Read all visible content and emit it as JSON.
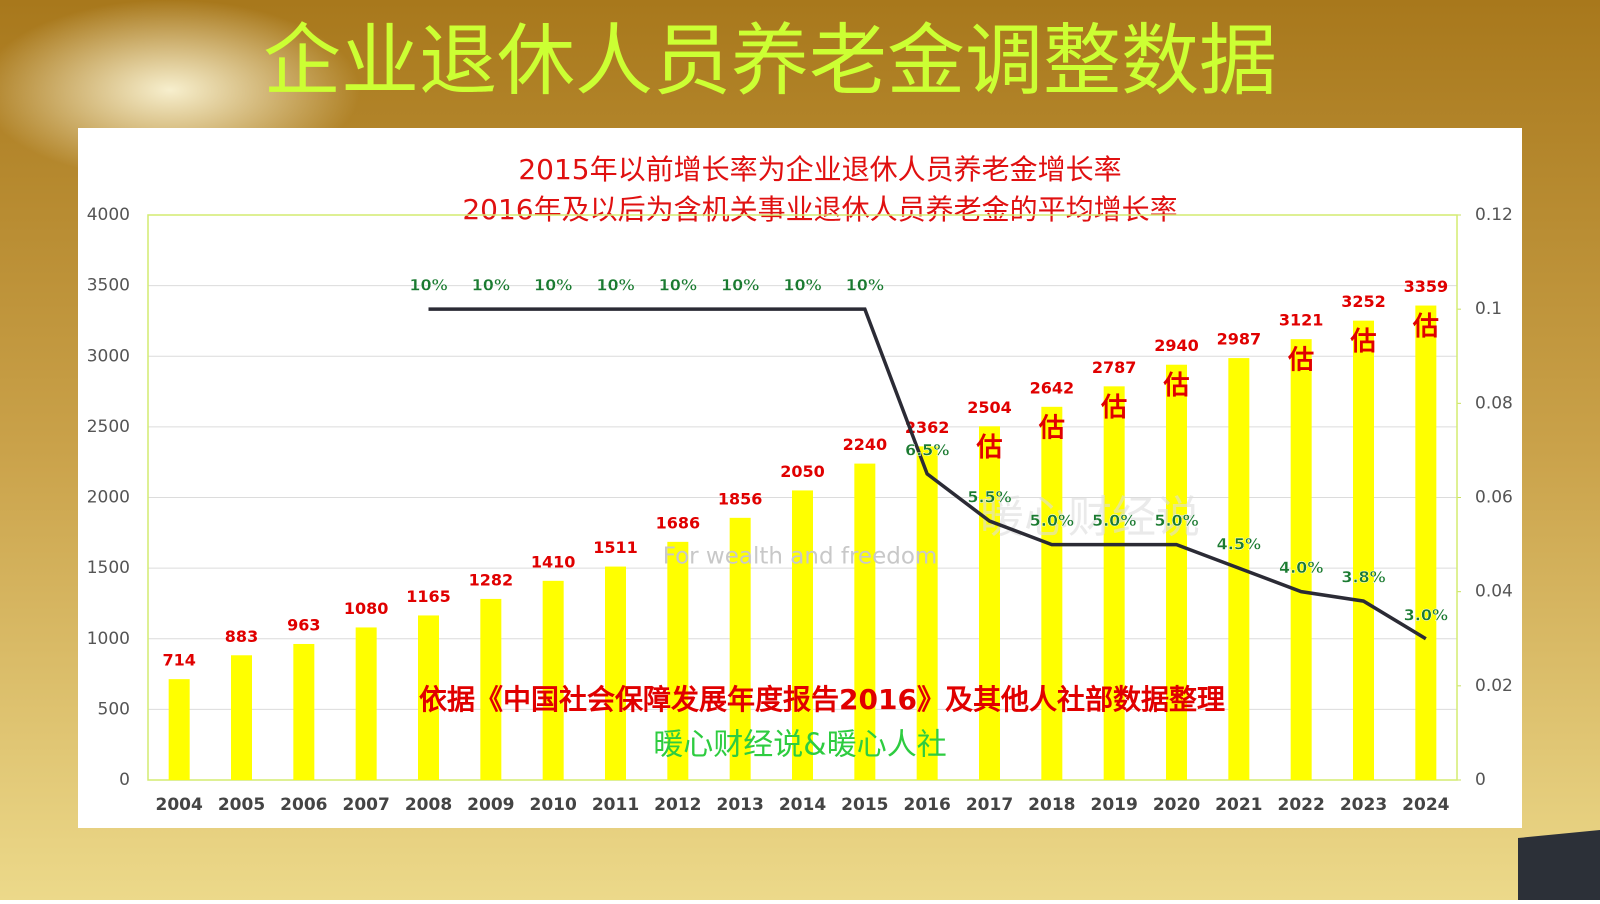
{
  "chart_data": {
    "type": "bar",
    "title": "企业退休人员养老金调整数据",
    "subtitle": [
      "2015年以前增长率为企业退休人员养老金增长率",
      "2016年及以后为含机关事业退休人员养老金的平均增长率"
    ],
    "categories": [
      "2004",
      "2005",
      "2006",
      "2007",
      "2008",
      "2009",
      "2010",
      "2011",
      "2012",
      "2013",
      "2014",
      "2015",
      "2016",
      "2017",
      "2018",
      "2019",
      "2020",
      "2021",
      "2022",
      "2023",
      "2024"
    ],
    "series": [
      {
        "type": "bar",
        "color": "#ffff00",
        "label_color": "#e00000",
        "values": [
          714,
          883,
          963,
          1080,
          1165,
          1282,
          1410,
          1511,
          1686,
          1856,
          2050,
          2240,
          2362,
          2504,
          2642,
          2787,
          2940,
          2987,
          3121,
          3252,
          3359
        ]
      },
      {
        "type": "line",
        "axis": "y2",
        "color": "#2b2b35",
        "label_color": "#1a7a30",
        "values": [
          null,
          null,
          null,
          null,
          0.1,
          0.1,
          0.1,
          0.1,
          0.1,
          0.1,
          0.1,
          0.1,
          0.065,
          0.055,
          0.05,
          0.05,
          0.05,
          0.045,
          0.04,
          0.038,
          0.03
        ],
        "value_labels": [
          null,
          null,
          null,
          null,
          "10%",
          "10%",
          "10%",
          "10%",
          "10%",
          "10%",
          "10%",
          "10%",
          "6.5%",
          "5.5%",
          "5.0%",
          "5.0%",
          "5.0%",
          "4.5%",
          "4.0%",
          "3.8%",
          "3.0%"
        ]
      }
    ],
    "estimate_label": "估",
    "estimated": [
      false,
      false,
      false,
      false,
      false,
      false,
      false,
      false,
      false,
      false,
      false,
      false,
      false,
      true,
      true,
      true,
      true,
      false,
      true,
      true,
      true
    ],
    "ylim": [
      0,
      4000
    ],
    "yticks": [
      0,
      500,
      1000,
      1500,
      2000,
      2500,
      3000,
      3500,
      4000
    ],
    "y2lim": [
      0,
      0.12
    ],
    "y2ticks": [
      0,
      0.02,
      0.04,
      0.06,
      0.08,
      0.1,
      0.12
    ],
    "grid": true,
    "annotations": [
      "依据《中国社会保障发展年度报告2016》及其他人社部数据整理",
      "暖心财经说&暖心人社"
    ],
    "watermark": [
      "暖心财经说",
      "For wealth and freedom"
    ]
  }
}
